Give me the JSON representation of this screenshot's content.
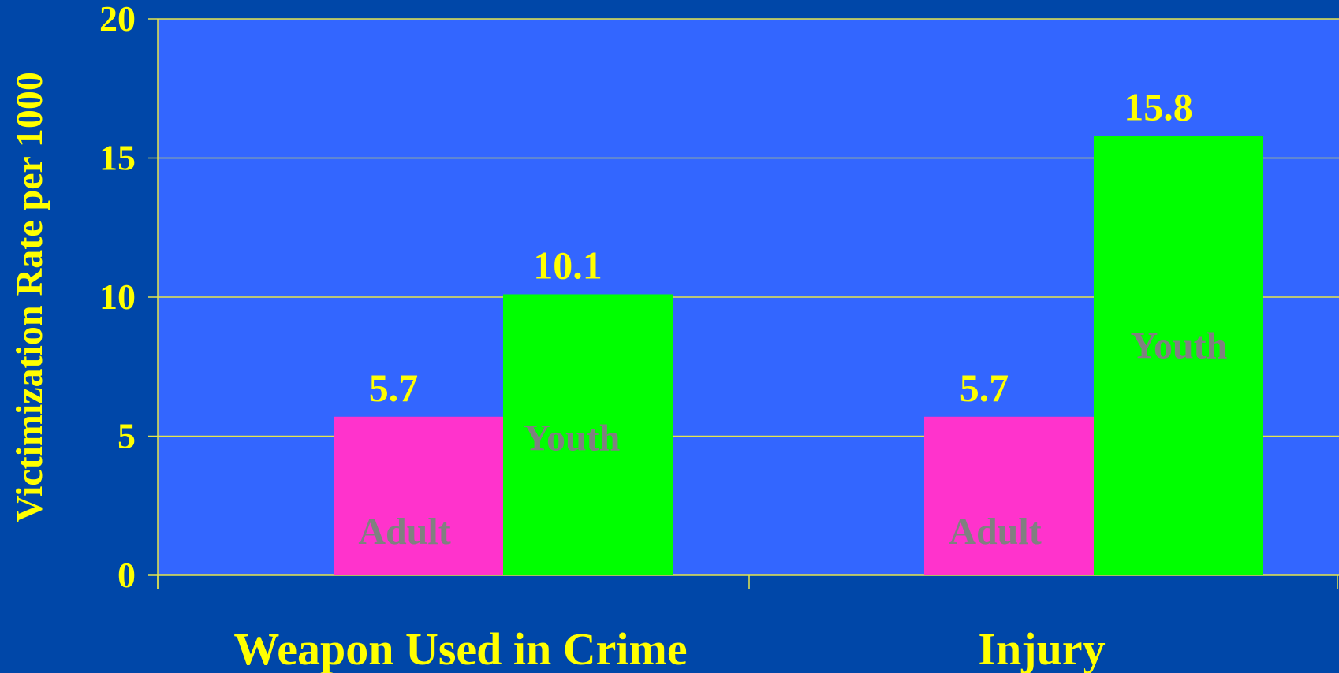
{
  "chart_data": {
    "type": "bar",
    "title": "",
    "xlabel": "",
    "ylabel": "Victimization Rate per 1000",
    "categories": [
      "Weapon Used in Crime",
      "Injury"
    ],
    "series": [
      {
        "name": "Adult",
        "values": [
          5.7,
          5.7
        ],
        "color": "#ff33cc"
      },
      {
        "name": "Youth",
        "values": [
          10.1,
          15.8
        ],
        "color": "#00ff00"
      }
    ],
    "data_labels": [
      [
        "5.7",
        "10.1"
      ],
      [
        "5.7",
        "15.8"
      ]
    ],
    "ylim": [
      0,
      20
    ],
    "yticks": [
      0,
      5,
      10,
      15,
      20
    ],
    "grid": true,
    "legend": "none (series names printed inside bars)"
  },
  "colors": {
    "page_background": "#0047a8",
    "plot_background": "#3366ff",
    "text": "#ffff00",
    "gridline": "#e6e64c",
    "in_bar_label": "#808080"
  }
}
